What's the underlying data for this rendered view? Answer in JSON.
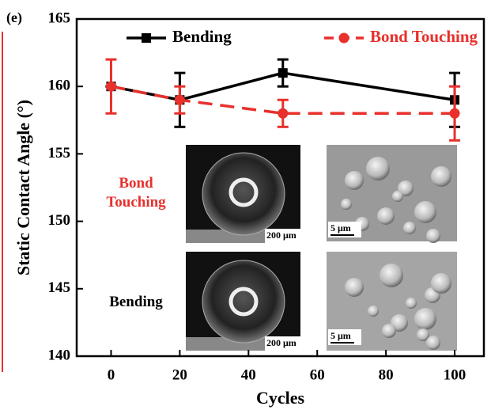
{
  "chart_data": {
    "type": "line",
    "panel_label": "(e)",
    "x_label": "Cycles",
    "y_label": "Static Contact Angle (°)",
    "x": [
      0,
      20,
      50,
      100
    ],
    "series": [
      {
        "name": "Bending",
        "color": "#000000",
        "marker": "square",
        "dash": false,
        "values": [
          160,
          159,
          161,
          159
        ],
        "errors": [
          0,
          2,
          1,
          2
        ]
      },
      {
        "name": "Bond Touching",
        "color": "#e8302c",
        "marker": "circle",
        "dash": true,
        "values": [
          160,
          159,
          158,
          158
        ],
        "errors": [
          2,
          1,
          1,
          2
        ]
      }
    ],
    "xlim": [
      -10,
      108.5
    ],
    "xticks": [
      0,
      20,
      40,
      60,
      80,
      100
    ],
    "ylim": [
      140,
      165
    ],
    "yticks": [
      140,
      145,
      150,
      155,
      160,
      165
    ],
    "legend": "top",
    "insets": {
      "top_label": "Bond Touching",
      "bottom_label": "Bending",
      "photo_scale": "200 μm",
      "sem_scale": "5 μm"
    }
  }
}
